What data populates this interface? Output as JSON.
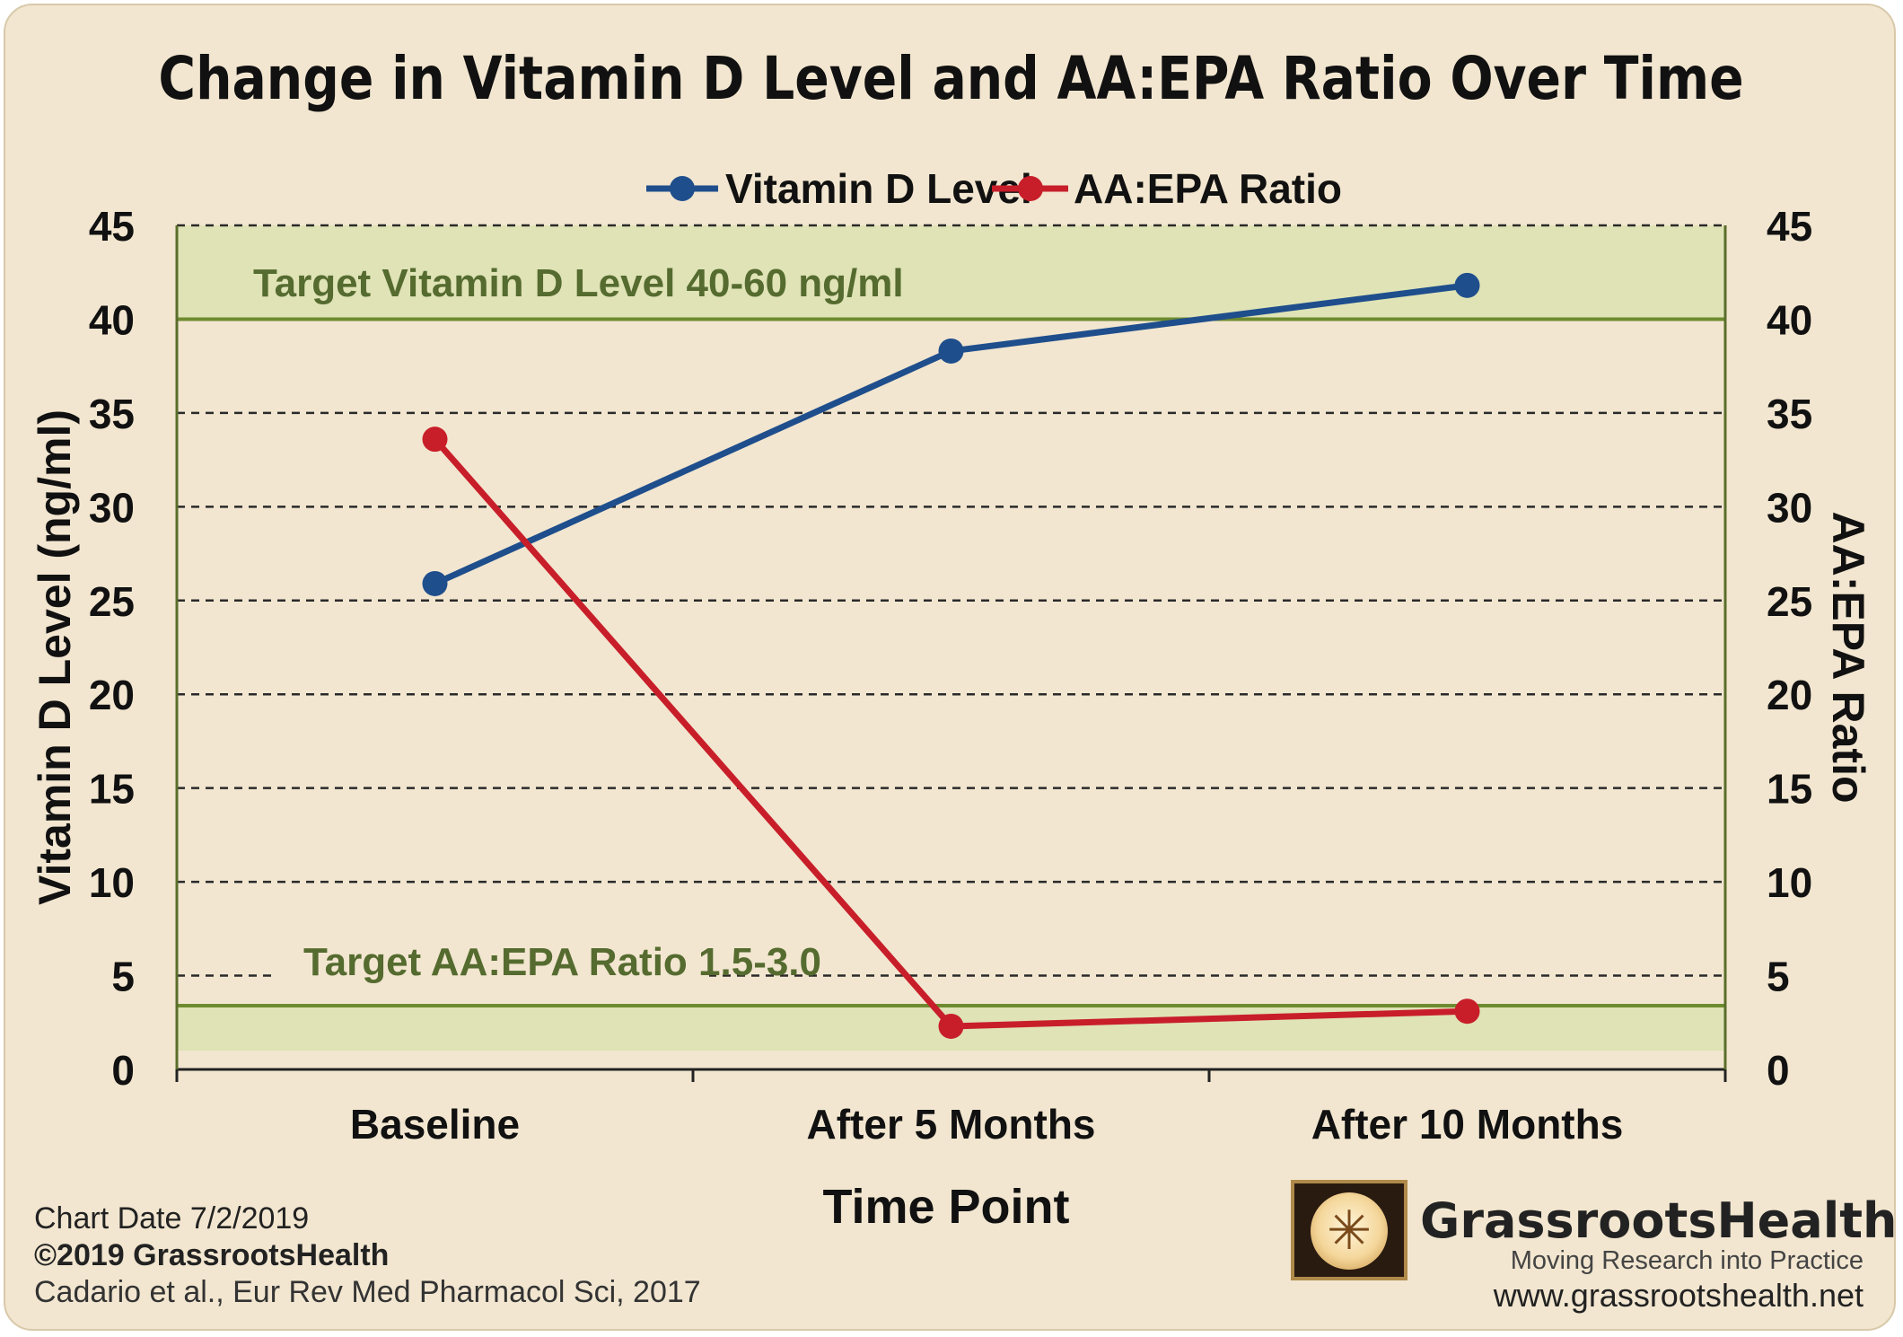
{
  "chart_data": {
    "type": "line",
    "title": "Change in Vitamin D Level and AA:EPA Ratio Over Time",
    "categories": [
      "Baseline",
      "After 5 Months",
      "After 10 Months"
    ],
    "xlabel": "Time Point",
    "ylabel_left": "Vitamin D Level (ng/ml)",
    "ylabel_right": "AA:EPA Ratio",
    "ylim": [
      0,
      45
    ],
    "yticks": [
      0,
      5,
      10,
      15,
      20,
      25,
      30,
      35,
      40,
      45
    ],
    "grid": "dashed horizontal",
    "legend_position": "top-center",
    "series": [
      {
        "name": "Vitamin D Level",
        "values": [
          25.9,
          38.3,
          41.8
        ],
        "color": "#1f4e8c",
        "axis": "left"
      },
      {
        "name": "AA:EPA Ratio",
        "values": [
          33.6,
          2.3,
          3.1
        ],
        "color": "#c81e2a",
        "axis": "right"
      }
    ],
    "bands": [
      {
        "label": "Target Vitamin D Level 40-60 ng/ml",
        "from": 40,
        "to": 45,
        "line": 40,
        "color": "#dfe3b6"
      },
      {
        "label": "Target AA:EPA Ratio 1.5-3.0",
        "from": 1,
        "to": 3.4,
        "line": 3.4,
        "color": "#dfe3b6"
      }
    ],
    "band_line_color": "#6e8b2f",
    "band_label_color": "#556b2f"
  },
  "footer": {
    "chart_date": "Chart Date 7/2/2019",
    "copyright": "©2019 GrassrootsHealth",
    "citation": "Cadario et al., Eur Rev Med Pharmacol Sci, 2017"
  },
  "brand": {
    "name": "GrassrootsHealth",
    "tagline": "Moving Research into Practice",
    "url": "www.grassrootshealth.net",
    "logo_icon": "vitruvian-man-icon"
  }
}
